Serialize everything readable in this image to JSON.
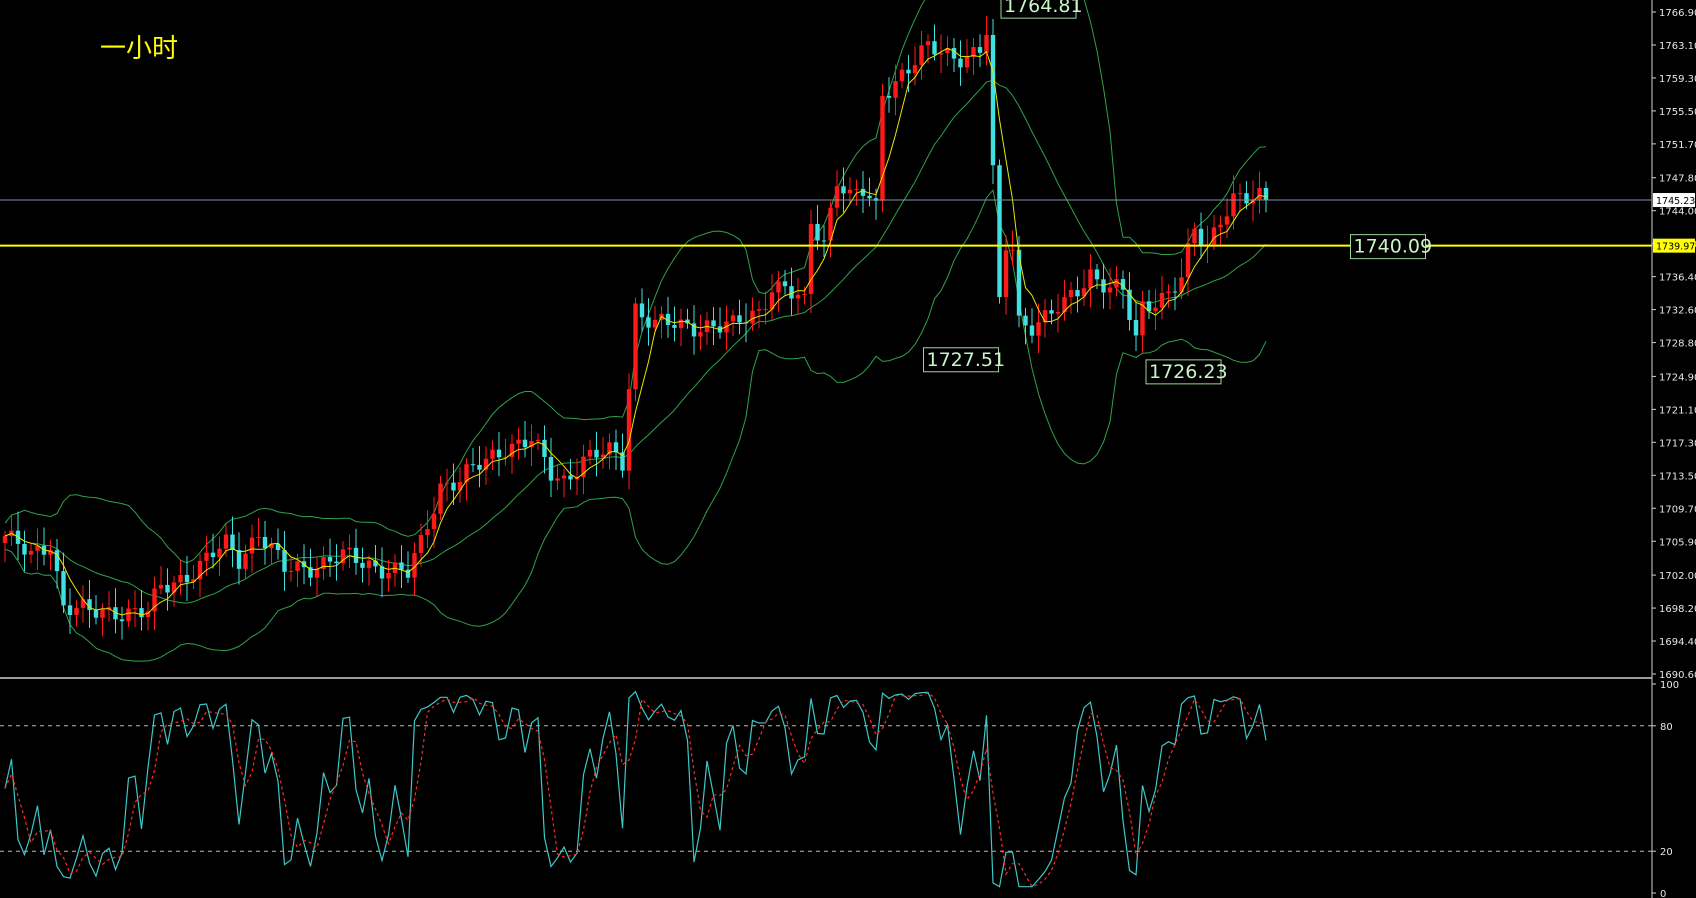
{
  "chart_data": {
    "type": "candlestick",
    "timeframe_label": "一小时",
    "price_axis": {
      "ylim": [
        1690.6,
        1766.9
      ],
      "ticks": [
        "1766.90",
        "1763.10",
        "1759.30",
        "1755.50",
        "1751.70",
        "1747.80",
        "1744.00",
        "1740.20",
        "1736.40",
        "1732.60",
        "1728.80",
        "1724.90",
        "1721.10",
        "1717.30",
        "1713.50",
        "1709.70",
        "1705.90",
        "1702.00",
        "1698.20",
        "1694.40",
        "1690.60"
      ]
    },
    "oscillator_axis": {
      "ylim": [
        0,
        100
      ],
      "ticks": [
        "100",
        "80",
        "20",
        "0"
      ],
      "levels": [
        80,
        20
      ]
    },
    "current_price_tag": "1745.23",
    "current_price": 1745.23,
    "horizontal_line_tag": "1739.97",
    "horizontal_line_price": 1739.97,
    "annotations": [
      {
        "text": "1764.81",
        "price": 1764.81,
        "bar": 152
      },
      {
        "text": "1740.09",
        "price": 1739.97,
        "bar": 207
      },
      {
        "text": "1727.51",
        "price": 1727.51,
        "bar": 153
      },
      {
        "text": "1726.23",
        "price": 1726.23,
        "bar": 174
      }
    ],
    "anchors": [
      [
        0,
        1706.5
      ],
      [
        4,
        1704
      ],
      [
        7,
        1706
      ],
      [
        9,
        1698.5
      ],
      [
        13,
        1697.5
      ],
      [
        17,
        1698
      ],
      [
        22,
        1697.5
      ],
      [
        24,
        1700.5
      ],
      [
        30,
        1703
      ],
      [
        34,
        1705.5
      ],
      [
        36,
        1704
      ],
      [
        39,
        1707
      ],
      [
        43,
        1702.5
      ],
      [
        52,
        1704
      ],
      [
        58,
        1703
      ],
      [
        62,
        1702
      ],
      [
        64,
        1705.5
      ],
      [
        67,
        1712.5
      ],
      [
        70,
        1713
      ],
      [
        74,
        1715
      ],
      [
        77,
        1717
      ],
      [
        81,
        1717.5
      ],
      [
        84,
        1713.5
      ],
      [
        86,
        1713
      ],
      [
        89,
        1715.5
      ],
      [
        93,
        1716
      ],
      [
        95,
        1715
      ],
      [
        97,
        1733
      ],
      [
        100,
        1731
      ],
      [
        104,
        1730.5
      ],
      [
        108,
        1731
      ],
      [
        112,
        1730.5
      ],
      [
        116,
        1732.5
      ],
      [
        118,
        1735.5
      ],
      [
        120,
        1735
      ],
      [
        123,
        1733
      ],
      [
        124,
        1742.5
      ],
      [
        126,
        1740.5
      ],
      [
        128,
        1748
      ],
      [
        130,
        1745.5
      ],
      [
        132,
        1746
      ],
      [
        134,
        1744
      ],
      [
        135,
        1757.5
      ],
      [
        138,
        1760
      ],
      [
        142,
        1762.5
      ],
      [
        145,
        1762
      ],
      [
        148,
        1762
      ],
      [
        150,
        1762.5
      ],
      [
        151,
        1764.5
      ],
      [
        152,
        1748
      ],
      [
        153,
        1733
      ],
      [
        154,
        1740
      ],
      [
        155,
        1740
      ],
      [
        156,
        1731.5
      ],
      [
        158,
        1731
      ],
      [
        160,
        1731.5
      ],
      [
        163,
        1733
      ],
      [
        165,
        1735
      ],
      [
        167,
        1737
      ],
      [
        170,
        1735
      ],
      [
        172,
        1734.5
      ],
      [
        174,
        1729
      ],
      [
        175,
        1733
      ],
      [
        177,
        1734
      ],
      [
        179,
        1734.5
      ],
      [
        181,
        1736
      ],
      [
        183,
        1741.5
      ],
      [
        185,
        1740
      ],
      [
        187,
        1743.5
      ],
      [
        189,
        1745.5
      ],
      [
        192,
        1745
      ],
      [
        194,
        1745.5
      ]
    ]
  }
}
